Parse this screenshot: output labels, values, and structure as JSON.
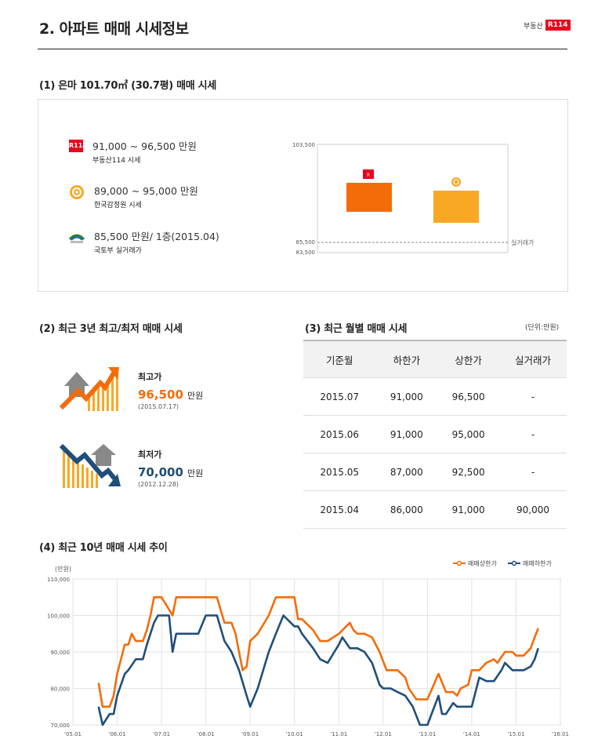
{
  "header": {
    "title": "2. 아파트 매매 시세정보",
    "logo_text": "부동산",
    "logo_badge": "R114"
  },
  "section1": {
    "title": "(1) 은마 101.70㎡ (30.7평) 매매 시세",
    "items": [
      {
        "icon": "r114-logo-icon",
        "range": "91,000 ~ 96,500 만원",
        "source": "부동산114 시세"
      },
      {
        "icon": "kab-logo-icon",
        "range": "89,000 ~ 95,000 만원",
        "source": "한국감정원 시세"
      },
      {
        "icon": "molit-logo-icon",
        "range": "85,500 만원/ 1층(2015.04)",
        "source": "국토부 실거래가"
      }
    ],
    "chart": {
      "y_top": "103,500",
      "y_mid": "85,500",
      "y_bottom": "83,500",
      "actual_label": "실거래가",
      "colors": {
        "r114": "#f46c09",
        "kab": "#f9a825"
      }
    }
  },
  "section2": {
    "title": "(2) 최근 3년 최고/최저 매매 시세",
    "high": {
      "label": "최고가",
      "value": "96,500",
      "unit": "만원",
      "date": "(2015.07.17)",
      "color": "#f46c09"
    },
    "low": {
      "label": "최저가",
      "value": "70,000",
      "unit": "만원",
      "date": "(2012.12.28)",
      "color": "#1f4e79"
    }
  },
  "section3": {
    "title": "(3) 최근 월별 매매 시세",
    "unit": "(단위:만원)",
    "headers": [
      "기준월",
      "하한가",
      "상한가",
      "실거래가"
    ],
    "rows": [
      [
        "2015.07",
        "91,000",
        "96,500",
        "-"
      ],
      [
        "2015.06",
        "91,000",
        "95,000",
        "-"
      ],
      [
        "2015.05",
        "87,000",
        "92,500",
        "-"
      ],
      [
        "2015.04",
        "86,000",
        "91,000",
        "90,000"
      ]
    ]
  },
  "section4": {
    "title": "(4) 최근 10년 매매 시세 추이",
    "unit": "(만원)"
  },
  "chart_data": {
    "type": "line",
    "title": "",
    "ylabel": "(만원)",
    "ylim": [
      70000,
      110000
    ],
    "yticks": [
      "110,000",
      "100,000",
      "90,000",
      "80,000",
      "70,000"
    ],
    "xticks": [
      "'05.01",
      "'06.01",
      "'07.01",
      "'08.01",
      "'09.01",
      "'10.01",
      "'11.01",
      "'12.01",
      "'13.01",
      "'14.01",
      "'15.01",
      "'16.01"
    ],
    "xlim": [
      2005.0,
      2016.0
    ],
    "legend_position": "top-right",
    "grid": true,
    "series": [
      {
        "name": "매매상한가",
        "color": "#f46c09",
        "x": [
          2005.58,
          2005.67,
          2005.83,
          2005.92,
          2006.0,
          2006.17,
          2006.25,
          2006.33,
          2006.42,
          2006.58,
          2006.67,
          2006.75,
          2006.83,
          2006.92,
          2007.0,
          2007.25,
          2007.33,
          2007.42,
          2007.5,
          2008.25,
          2008.42,
          2008.58,
          2008.67,
          2008.75,
          2008.83,
          2008.92,
          2009.0,
          2009.17,
          2009.42,
          2009.58,
          2009.75,
          2009.83,
          2010.0,
          2010.08,
          2010.17,
          2010.42,
          2010.58,
          2010.75,
          2011.0,
          2011.25,
          2011.33,
          2011.42,
          2011.58,
          2011.75,
          2011.92,
          2012.08,
          2012.17,
          2012.33,
          2012.5,
          2012.58,
          2012.75,
          2012.92,
          2013.0,
          2013.25,
          2013.42,
          2013.58,
          2013.67,
          2013.75,
          2013.92,
          2014.0,
          2014.17,
          2014.33,
          2014.5,
          2014.58,
          2014.75,
          2014.92,
          2015.0,
          2015.17,
          2015.33,
          2015.42,
          2015.5
        ],
        "y": [
          81500,
          75000,
          75000,
          78000,
          84000,
          92000,
          92000,
          95000,
          93000,
          93000,
          96000,
          100000,
          105000,
          105000,
          105000,
          100000,
          105000,
          105000,
          105000,
          105000,
          98000,
          98000,
          95000,
          90000,
          85000,
          86000,
          93000,
          95000,
          100000,
          105000,
          105000,
          105000,
          105000,
          99000,
          99000,
          96000,
          93000,
          93000,
          95000,
          98000,
          96000,
          95000,
          95000,
          94000,
          90000,
          85000,
          85000,
          85000,
          83000,
          80000,
          77000,
          77000,
          77000,
          84000,
          79000,
          79000,
          78000,
          80000,
          81000,
          85000,
          85000,
          87000,
          88000,
          87000,
          90000,
          90000,
          89000,
          89000,
          91000,
          94000,
          96500
        ]
      },
      {
        "name": "매매하한가",
        "color": "#1f4e79",
        "x": [
          2005.58,
          2005.67,
          2005.83,
          2005.92,
          2006.0,
          2006.17,
          2006.25,
          2006.42,
          2006.58,
          2006.67,
          2006.83,
          2006.92,
          2007.0,
          2007.17,
          2007.25,
          2007.33,
          2007.5,
          2007.83,
          2008.0,
          2008.25,
          2008.42,
          2008.58,
          2008.75,
          2008.92,
          2009.0,
          2009.17,
          2009.42,
          2009.58,
          2009.75,
          2010.0,
          2010.08,
          2010.17,
          2010.42,
          2010.58,
          2010.75,
          2011.0,
          2011.08,
          2011.25,
          2011.42,
          2011.58,
          2011.75,
          2011.92,
          2012.0,
          2012.17,
          2012.33,
          2012.5,
          2012.67,
          2012.83,
          2013.0,
          2013.25,
          2013.33,
          2013.42,
          2013.58,
          2013.67,
          2013.83,
          2014.0,
          2014.17,
          2014.33,
          2014.5,
          2014.67,
          2014.75,
          2014.92,
          2015.0,
          2015.17,
          2015.33,
          2015.42,
          2015.5
        ],
        "y": [
          75000,
          70000,
          73000,
          73000,
          78000,
          84000,
          85000,
          88000,
          88000,
          92000,
          98000,
          100000,
          100000,
          100000,
          90000,
          95000,
          95000,
          95000,
          100000,
          100000,
          93000,
          90000,
          85000,
          78000,
          75000,
          80000,
          90000,
          95000,
          100000,
          97000,
          97000,
          95000,
          91000,
          88000,
          87000,
          92000,
          94000,
          91000,
          91000,
          90000,
          87000,
          81000,
          80000,
          80000,
          79000,
          78000,
          75000,
          70000,
          70000,
          78000,
          73000,
          73000,
          76000,
          75000,
          75000,
          75000,
          83000,
          82000,
          82000,
          85000,
          87000,
          85000,
          85000,
          85000,
          86000,
          88000,
          91000
        ]
      }
    ]
  }
}
